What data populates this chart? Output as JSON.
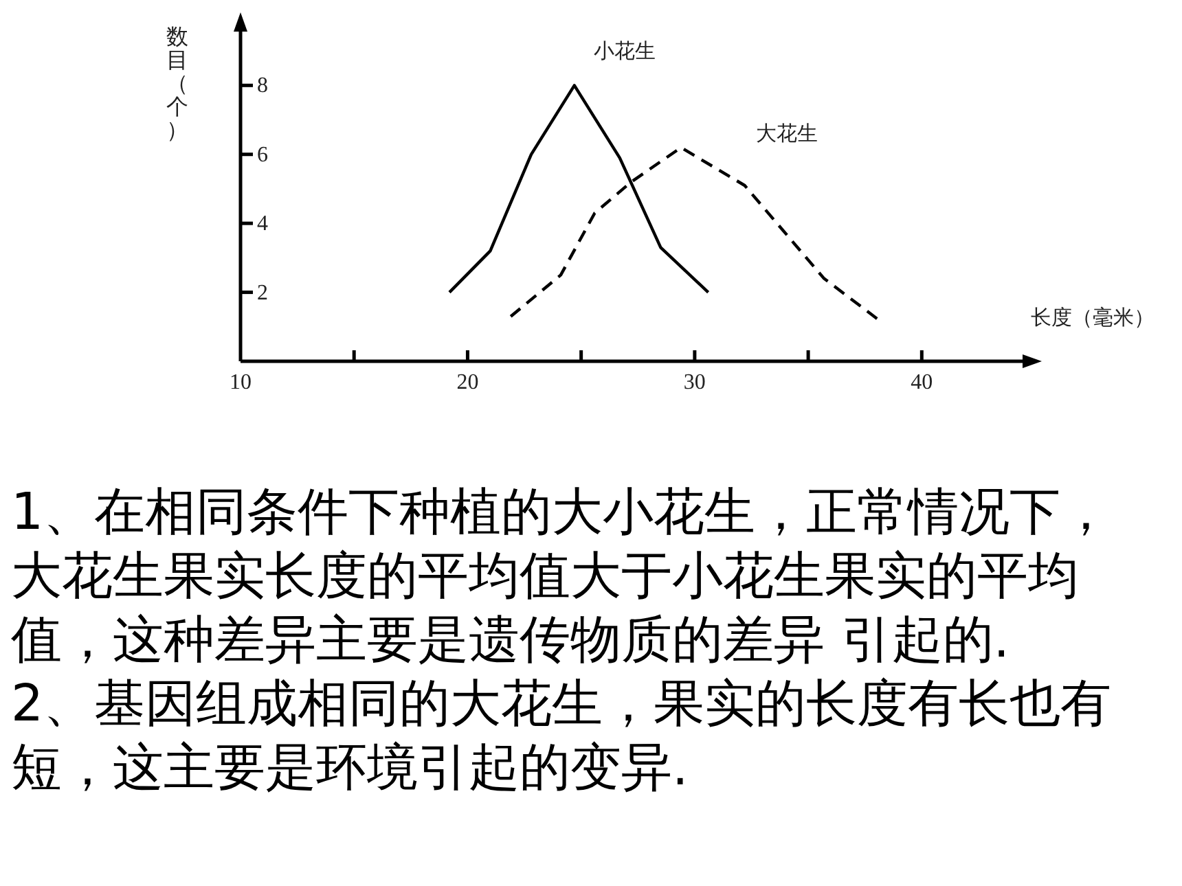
{
  "chart_data": {
    "type": "line",
    "xlabel": "长度（毫米）",
    "ylabel": "数目（个）",
    "xlim": [
      10,
      44.5
    ],
    "ylim": [
      0,
      9.6
    ],
    "xticks": [
      10,
      {
        "value": 15,
        "label": null
      },
      20,
      {
        "value": 25,
        "label": null
      },
      30,
      {
        "value": 35,
        "label": null
      },
      40
    ],
    "yticks": [
      2,
      4,
      6,
      8
    ],
    "grid": false,
    "legend": false,
    "marker": "none",
    "series": [
      {
        "name": "小花生",
        "color": "#000000",
        "line_style": "solid",
        "x": [
          19.2,
          21,
          22.8,
          24.7,
          26.7,
          28.5,
          30.6
        ],
        "values": [
          2,
          3.2,
          6,
          8,
          5.9,
          3.3,
          2
        ]
      },
      {
        "name": "大花生",
        "color": "#000000",
        "line_style": "dashed",
        "x": [
          21.9,
          24.1,
          25.6,
          27.2,
          29.4,
          32.2,
          35.7,
          38.1
        ],
        "values": [
          1.3,
          2.5,
          4.3,
          5.2,
          6.2,
          5.1,
          2.4,
          1.2
        ]
      }
    ],
    "annotations": [
      "1、在相同条件下种植的大小花生，正常情况下，",
      "大花生果实长度的平均值大于小花生果实的平均",
      "值，这种差异主要是遗传物质的差异 引起的.",
      "2、基因组成相同的大花生，果实的长度有长也有",
      "短，这主要是环境引起的变异."
    ]
  }
}
